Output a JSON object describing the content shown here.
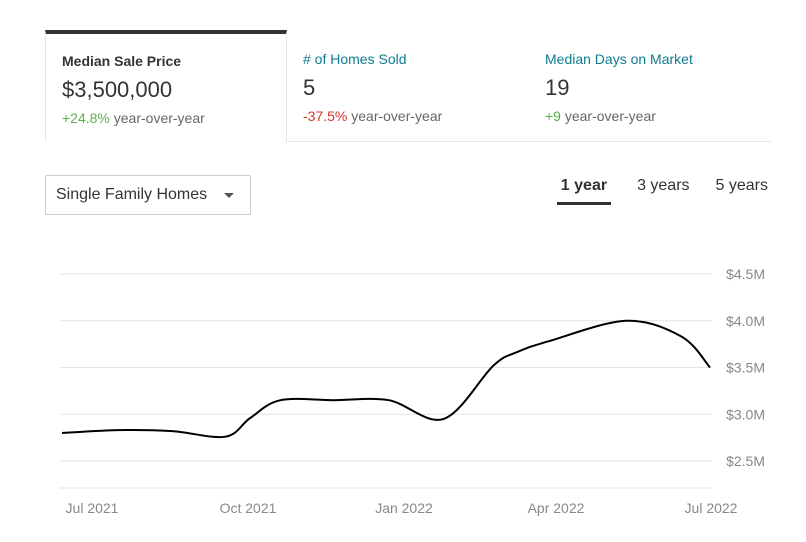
{
  "tabs": [
    {
      "title": "Median Sale Price",
      "value": "$3,500,000",
      "change": "+24.8%",
      "change_suffix": "year-over-year",
      "active": true,
      "change_color": "#59b14a"
    },
    {
      "title": "# of Homes Sold",
      "value": "5",
      "change": "-37.5%",
      "change_suffix": "year-over-year",
      "active": false,
      "change_color": "#d9342b"
    },
    {
      "title": "Median Days on Market",
      "value": "19",
      "change": "+9",
      "change_suffix": "year-over-year",
      "active": false,
      "change_color": "#59b14a"
    }
  ],
  "dropdown": {
    "selected": "Single Family Homes",
    "icon": "chevron-down-icon"
  },
  "periods": [
    {
      "label": "1 year",
      "active": true
    },
    {
      "label": "3 years",
      "active": false
    },
    {
      "label": "5 years",
      "active": false
    }
  ],
  "chart_data": {
    "type": "line",
    "x_tick_labels": [
      "Jul 2021",
      "Oct 2021",
      "Jan 2022",
      "Apr 2022",
      "Jul 2022"
    ],
    "y_tick_labels": [
      "$4.5M",
      "$4.0M",
      "$3.5M",
      "$3.0M",
      "$2.5M"
    ],
    "y_ticks": [
      4.5,
      4.0,
      3.5,
      3.0,
      2.5
    ],
    "ylim": [
      2.5,
      4.5
    ],
    "grid": true,
    "line_color": "#000000",
    "series": [
      {
        "x": [
          "2021-07-01",
          "2021-08-01",
          "2021-09-01",
          "2021-10-01",
          "2021-10-15",
          "2021-11-01",
          "2021-12-01",
          "2022-01-01",
          "2022-02-01",
          "2022-03-01",
          "2022-03-15",
          "2022-04-01",
          "2022-05-15",
          "2022-06-15",
          "2022-07-01"
        ],
        "values": [
          2.8,
          2.83,
          2.82,
          2.76,
          2.96,
          3.15,
          3.15,
          3.15,
          2.95,
          3.52,
          3.67,
          3.78,
          4.0,
          3.83,
          3.5
        ]
      }
    ]
  }
}
